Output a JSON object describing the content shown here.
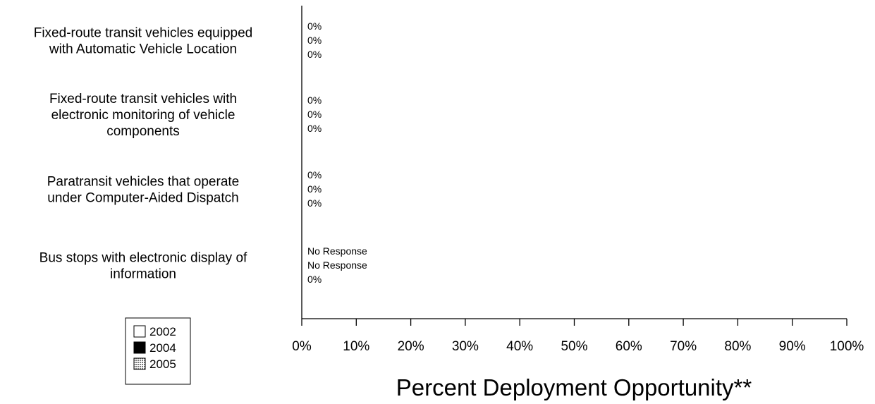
{
  "chart_data": {
    "type": "bar",
    "orientation": "horizontal",
    "categories": [
      [
        "Fixed-route transit vehicles equipped",
        "with Automatic Vehicle Location"
      ],
      [
        "Fixed-route transit vehicles with",
        "electronic monitoring of vehicle",
        "components"
      ],
      [
        "Paratransit vehicles that operate",
        "under Computer-Aided Dispatch"
      ],
      [
        "Bus stops with electronic display of",
        "information"
      ]
    ],
    "series": [
      {
        "name": "2002",
        "color": "#ffffff",
        "values": [
          0,
          0,
          0,
          null
        ],
        "labels": [
          "0%",
          "0%",
          "0%",
          "No Response"
        ]
      },
      {
        "name": "2004",
        "color": "#000000",
        "values": [
          0,
          0,
          0,
          null
        ],
        "labels": [
          "0%",
          "0%",
          "0%",
          "No Response"
        ]
      },
      {
        "name": "2005",
        "color": "#b0b0b0",
        "values": [
          0,
          0,
          0,
          0
        ],
        "labels": [
          "0%",
          "0%",
          "0%",
          "0%"
        ]
      }
    ],
    "xlabel": "Percent Deployment Opportunity**",
    "xlim": [
      0,
      100
    ],
    "ticks": [
      "0%",
      "10%",
      "20%",
      "30%",
      "40%",
      "50%",
      "60%",
      "70%",
      "80%",
      "90%",
      "100%"
    ],
    "grid": false,
    "legend_position": "bottom-left"
  }
}
